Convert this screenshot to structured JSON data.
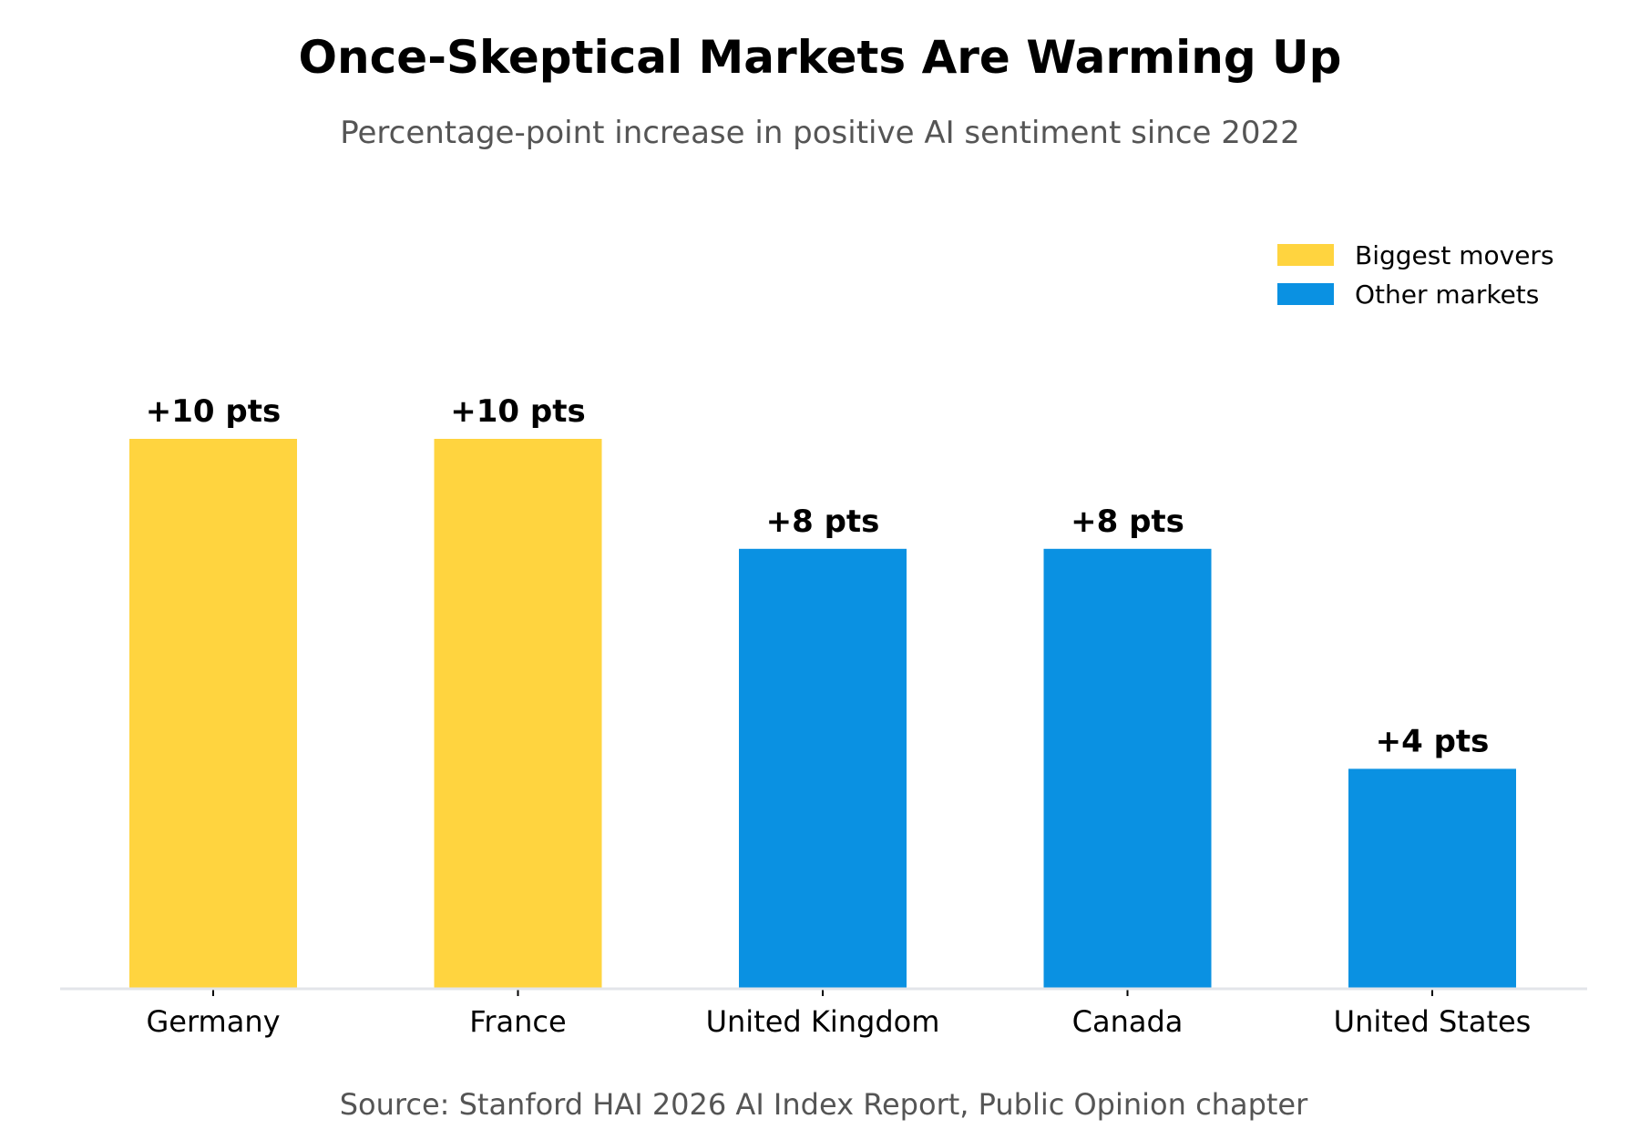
{
  "chart_data": {
    "type": "bar",
    "title": "Once-Skeptical Markets Are Warming Up",
    "subtitle": "Percentage-point increase in positive AI sentiment since 2022",
    "source": "Source: Stanford HAI 2026 AI Index Report, Public Opinion chapter",
    "categories": [
      "Germany",
      "France",
      "United Kingdom",
      "Canada",
      "United States"
    ],
    "values": [
      10,
      10,
      8,
      8,
      4
    ],
    "data_labels": [
      "+10 pts",
      "+10 pts",
      "+8 pts",
      "+8 pts",
      "+4 pts"
    ],
    "groups": [
      "Biggest movers",
      "Biggest movers",
      "Other markets",
      "Other markets",
      "Other markets"
    ],
    "legend": [
      {
        "name": "Biggest movers",
        "color": "#FFD43F"
      },
      {
        "name": "Other markets",
        "color": "#0A91E2"
      }
    ],
    "legend_position": "top-right",
    "ylim": [
      0,
      10
    ],
    "xlabel": "",
    "ylabel": "",
    "grid": false,
    "y_axis_visible": false
  }
}
